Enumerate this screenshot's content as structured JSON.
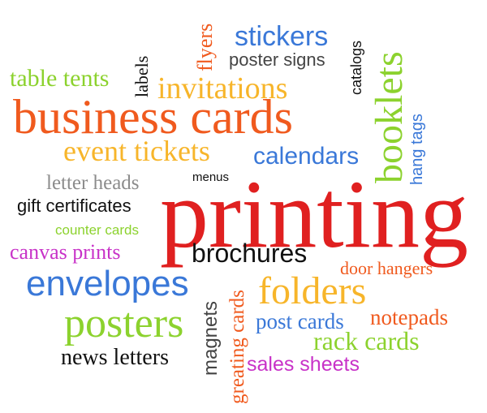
{
  "palette": {
    "red": "#e02020",
    "orange": "#f05a1e",
    "yellow": "#f7b52a",
    "blue": "#3a78d8",
    "green": "#8cd22e",
    "purple": "#c832c8",
    "gray": "#8c8c8c",
    "dark_gray": "#444444",
    "black": "#111111"
  },
  "words": {
    "printing": "printing",
    "business_cards": "business cards",
    "booklets": "booklets",
    "stickers": "stickers",
    "invitations": "invitations",
    "event_tickets": "event tickets",
    "calendars": "calendars",
    "hang_tags": "hang tags",
    "catalogs": "catalogs",
    "flyers": "flyers",
    "poster_signs": "poster signs",
    "labels": "labels",
    "table_tents": "table tents",
    "letter_heads": "letter heads",
    "menus": "menus",
    "gift_certificates": "gift certificates",
    "counter_cards": "counter cards",
    "canvas_prints": "canvas prints",
    "brochures": "brochures",
    "door_hangers": "door hangers",
    "envelopes": "envelopes",
    "folders": "folders",
    "posters": "posters",
    "magnets": "magnets",
    "greeting_cards": "greating cards",
    "post_cards": "post cards",
    "notepads": "notepads",
    "rack_cards": "rack cards",
    "news_letters": "news letters",
    "sales_sheets": "sales sheets"
  }
}
